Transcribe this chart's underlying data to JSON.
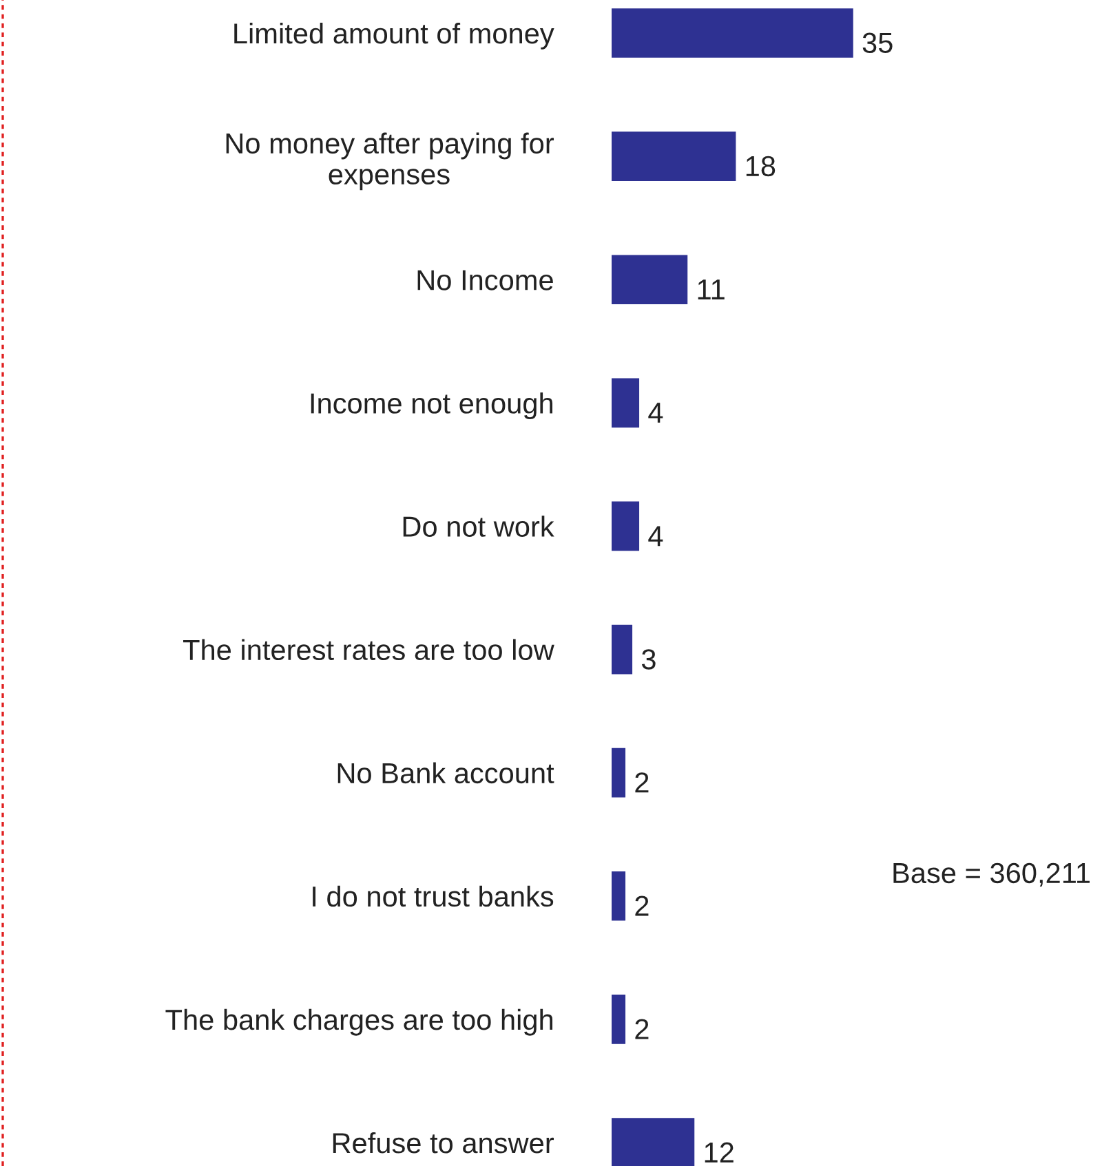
{
  "chart_data": {
    "type": "bar",
    "orientation": "horizontal",
    "categories": [
      "Limited amount of money",
      "No money after paying for\nexpenses",
      "No Income",
      "Income not enough",
      "Do not work",
      "The interest rates are too low",
      "No Bank account",
      "I do not trust banks",
      "The bank charges are too high",
      "Refuse to answer"
    ],
    "values": [
      35,
      18,
      11,
      4,
      4,
      3,
      2,
      2,
      2,
      12
    ],
    "color": "#2e3192",
    "data_labels": true,
    "annotations": [
      "Base = 360,211"
    ]
  }
}
